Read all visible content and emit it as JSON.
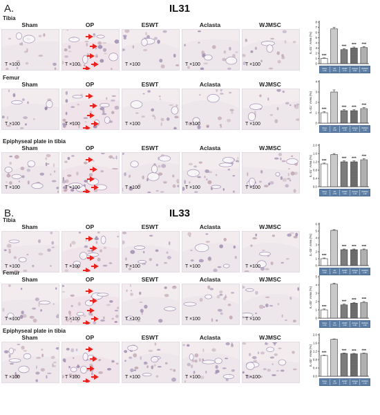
{
  "panels": [
    {
      "letter": "A.",
      "title": "IL31",
      "ylabel": "IL-31⁺ Area (%)",
      "sections": [
        {
          "label": "Tibia",
          "columns": [
            "Sham",
            "OP",
            "ESWT",
            "Aclasta",
            "WJMSC"
          ],
          "magnification": "T ×100",
          "chart": {
            "type": "bar",
            "categories": [
              "Sham",
              "OP",
              "ESWT",
              "Aclasta",
              "WJMSC"
            ],
            "values": [
              1.0,
              6.7,
              2.7,
              3.0,
              3.1
            ],
            "errors": [
              0.1,
              0.3,
              0.2,
              0.2,
              0.2
            ],
            "ylim": [
              0,
              8
            ],
            "yticks": [
              "0",
              "1",
              "2",
              "3",
              "4",
              "5",
              "6",
              "7",
              "8"
            ],
            "marks": [
              "***",
              "",
              "***",
              "***",
              "***"
            ],
            "fills": [
              "white",
              "lightgray",
              "darkgray",
              "crosshatch",
              "hstripe"
            ]
          }
        },
        {
          "label": "Femur",
          "columns": [
            "Sham",
            "OP",
            "ESWT",
            "Aclasta",
            "WJMSC"
          ],
          "magnification": "T ×100",
          "chart": {
            "type": "bar",
            "categories": [
              "Sham",
              "OP",
              "ESWT",
              "Aclasta",
              "WJMSC"
            ],
            "values": [
              1.0,
              3.0,
              1.2,
              1.2,
              1.4
            ],
            "errors": [
              0.1,
              0.2,
              0.1,
              0.1,
              0.1
            ],
            "ylim": [
              0,
              4
            ],
            "yticks": [
              "0",
              "1",
              "2",
              "3",
              "4"
            ],
            "marks": [
              "***",
              "",
              "***",
              "***",
              "***"
            ],
            "fills": [
              "white",
              "lightgray",
              "darkgray",
              "crosshatch",
              "hstripe"
            ]
          }
        },
        {
          "label": "Epiphyseal plate in tibia",
          "columns": [
            "Sham",
            "OP",
            "ESWT",
            "Aclasta",
            "WJMSC"
          ],
          "magnification": "T ×100",
          "chart": {
            "type": "bar",
            "categories": [
              "Sham",
              "OP",
              "ESWT",
              "Aclasta",
              "WJMSC"
            ],
            "values": [
              1.1,
              1.55,
              1.2,
              1.2,
              1.3
            ],
            "errors": [
              0.04,
              0.05,
              0.05,
              0.05,
              0.05
            ],
            "ylim": [
              0,
              2.0
            ],
            "yticks": [
              "0.0",
              "0.4",
              "0.8",
              "1.2",
              "1.6",
              "2.0"
            ],
            "marks": [
              "***",
              "",
              "***",
              "***",
              "***"
            ],
            "fills": [
              "white",
              "lightgray",
              "darkgray",
              "crosshatch",
              "hstripe"
            ]
          }
        }
      ]
    },
    {
      "letter": "B.",
      "title": "IL33",
      "ylabel": "IL-33⁺ Area (%)",
      "sections": [
        {
          "label": "Tibia",
          "columns": [
            "Sham",
            "OP",
            "ESWT",
            "Aclasta",
            "WJMSC"
          ],
          "magnification": "T ×100",
          "chart": {
            "type": "bar",
            "categories": [
              "Sham",
              "OP",
              "ESWT",
              "Aclasta",
              "WJMSC"
            ],
            "values": [
              1.0,
              5.1,
              2.3,
              2.3,
              2.3
            ],
            "errors": [
              0.1,
              0.1,
              0.1,
              0.1,
              0.1
            ],
            "ylim": [
              0,
              6
            ],
            "yticks": [
              "0",
              "1",
              "2",
              "3",
              "4",
              "5",
              "6"
            ],
            "marks": [
              "***",
              "",
              "***",
              "***",
              "***"
            ],
            "fills": [
              "white",
              "lightgray",
              "darkgray",
              "crosshatch",
              "hstripe"
            ]
          }
        },
        {
          "label": "Femur",
          "columns": [
            "Sham",
            "OP",
            "SEWT",
            "Aclasta",
            "WJMSC"
          ],
          "magnification": "T ×100",
          "chart": {
            "type": "bar",
            "categories": [
              "Sham",
              "OP",
              "ESWT",
              "Aclasta",
              "WJMSC"
            ],
            "values": [
              1.0,
              4.1,
              1.6,
              1.8,
              1.9
            ],
            "errors": [
              0.1,
              0.1,
              0.1,
              0.1,
              0.1
            ],
            "ylim": [
              0,
              5
            ],
            "yticks": [
              "0",
              "1",
              "2",
              "3",
              "4",
              "5"
            ],
            "marks": [
              "***",
              "",
              "***",
              "***",
              "***"
            ],
            "fills": [
              "white",
              "lightgray",
              "darkgray",
              "crosshatch",
              "hstripe"
            ]
          }
        },
        {
          "label": "Epiphyseal plate in tibia",
          "columns": [
            "Sham",
            "OP",
            "ESWT",
            "Aclasta",
            "WJMSC"
          ],
          "magnification": "T ×100",
          "chart": {
            "type": "bar",
            "categories": [
              "Sham",
              "OP",
              "ESWT",
              "Aclasta",
              "WJMSC"
            ],
            "values": [
              1.0,
              1.78,
              1.1,
              1.08,
              1.1
            ],
            "errors": [
              0.02,
              0.02,
              0.02,
              0.02,
              0.02
            ],
            "ylim": [
              0,
              2.0
            ],
            "yticks": [
              "0.0",
              "0.4",
              "0.8",
              "1.2",
              "1.6",
              "2.0"
            ],
            "marks": [
              "***",
              "",
              "***",
              "***",
              "***"
            ],
            "fills": [
              "white",
              "lightgray",
              "darkgray",
              "crosshatch",
              "hstripe"
            ]
          }
        }
      ]
    }
  ]
}
